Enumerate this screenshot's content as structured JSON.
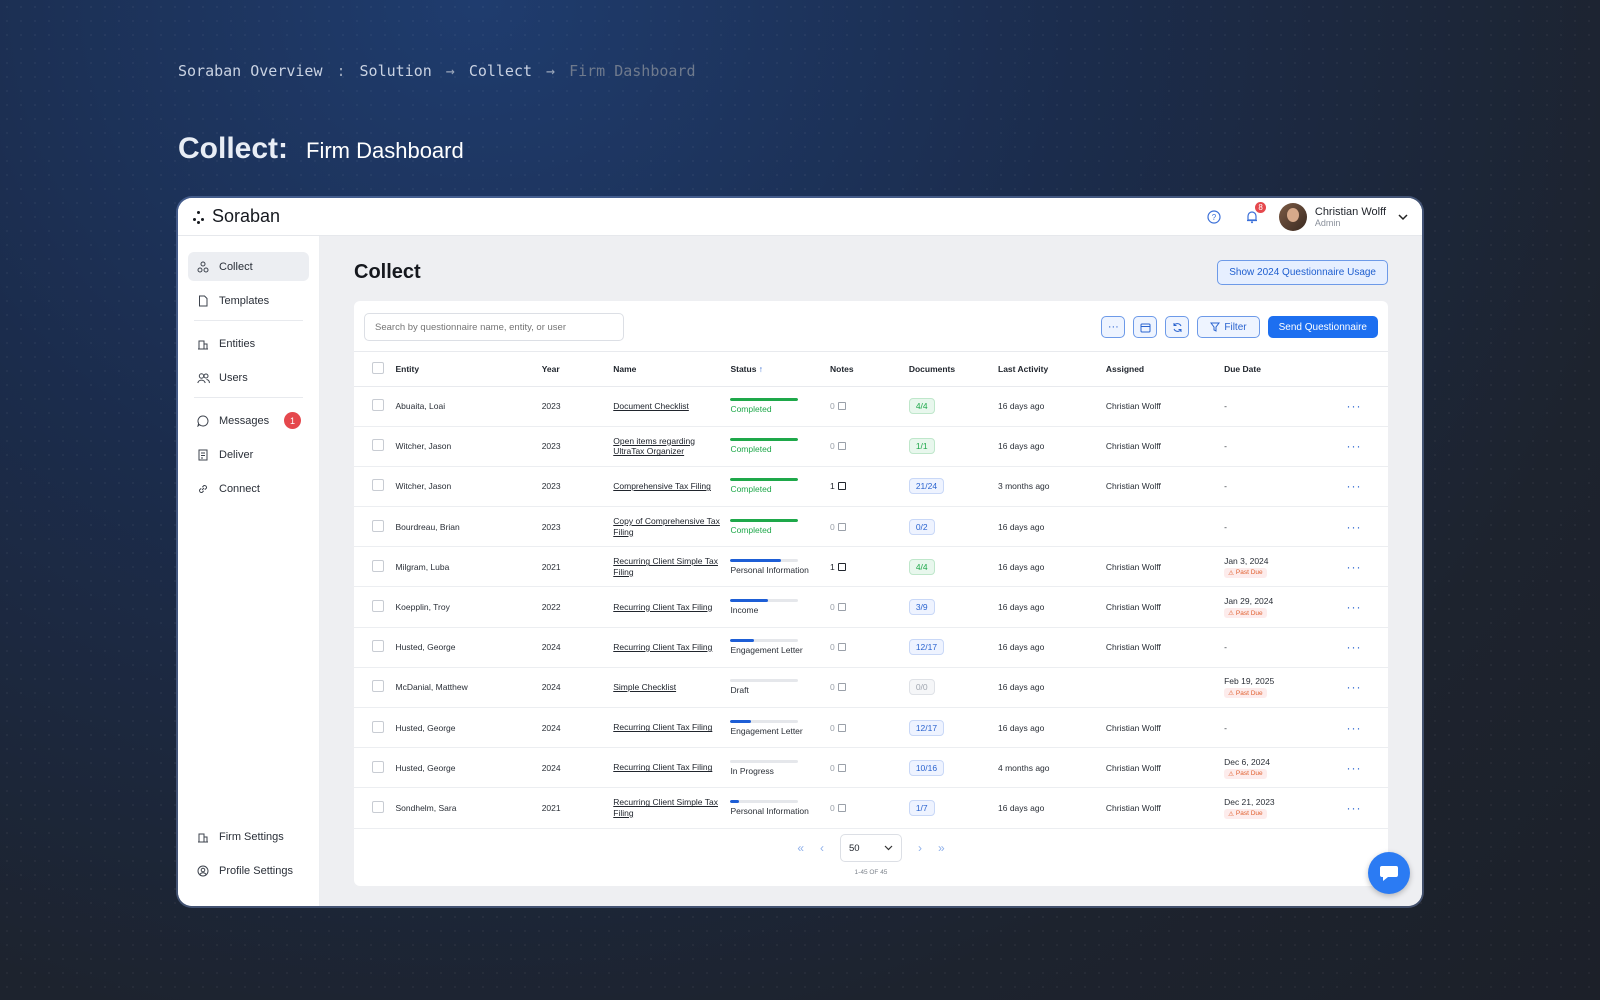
{
  "breadcrumb": {
    "items": [
      "Soraban Overview",
      "Solution",
      "Collect",
      "Firm Dashboard"
    ],
    "separators": [
      ":",
      "→",
      "→"
    ]
  },
  "heading": {
    "main": "Collect:",
    "sub": "Firm Dashboard"
  },
  "app": {
    "logo": "Soraban",
    "notifications_count": "8",
    "user": {
      "name": "Christian Wolff",
      "role": "Admin"
    }
  },
  "sidebar": {
    "items": [
      {
        "label": "Collect",
        "icon": "collect-icon",
        "active": true
      },
      {
        "label": "Templates",
        "icon": "document-icon"
      },
      {
        "label": "Entities",
        "icon": "building-icon"
      },
      {
        "label": "Users",
        "icon": "users-icon"
      },
      {
        "label": "Messages",
        "icon": "message-icon",
        "badge": "1"
      },
      {
        "label": "Deliver",
        "icon": "deliver-icon"
      },
      {
        "label": "Connect",
        "icon": "link-icon"
      }
    ],
    "bottom": [
      {
        "label": "Firm Settings",
        "icon": "building-icon"
      },
      {
        "label": "Profile Settings",
        "icon": "profile-settings-icon"
      }
    ]
  },
  "main": {
    "title": "Collect",
    "usage_button": "Show 2024 Questionnaire Usage",
    "search_placeholder": "Search by questionnaire name, entity, or user",
    "filter_label": "Filter",
    "send_label": "Send Questionnaire"
  },
  "table": {
    "headers": [
      "Entity",
      "Year",
      "Name",
      "Status",
      "Notes",
      "Documents",
      "Last Activity",
      "Assigned",
      "Due Date"
    ],
    "rows": [
      {
        "entity": "Abuaita, Loai",
        "year": "2023",
        "name": "Document Checklist",
        "status": "Completed",
        "progress": 1.0,
        "status_color": "#1ea84a",
        "notes": "0",
        "docs": "4/4",
        "docs_style": "green",
        "activity": "16 days ago",
        "assigned": "Christian Wolff",
        "due": "-",
        "past_due": false
      },
      {
        "entity": "Witcher, Jason",
        "year": "2023",
        "name": "Open items regarding UltraTax Organizer",
        "status": "Completed",
        "progress": 1.0,
        "status_color": "#1ea84a",
        "notes": "0",
        "docs": "1/1",
        "docs_style": "green",
        "activity": "16 days ago",
        "assigned": "Christian Wolff",
        "due": "-",
        "past_due": false
      },
      {
        "entity": "Witcher, Jason",
        "year": "2023",
        "name": "Comprehensive Tax Filing",
        "status": "Completed",
        "progress": 1.0,
        "status_color": "#1ea84a",
        "notes": "1",
        "docs": "21/24",
        "docs_style": "blue",
        "activity": "3 months ago",
        "assigned": "Christian Wolff",
        "due": "-",
        "past_due": false
      },
      {
        "entity": "Bourdreau, Brian",
        "year": "2023",
        "name": "Copy of Comprehensive Tax Filing",
        "status": "Completed",
        "progress": 1.0,
        "status_color": "#1ea84a",
        "notes": "0",
        "docs": "0/2",
        "docs_style": "blue",
        "activity": "16 days ago",
        "assigned": "",
        "due": "-",
        "past_due": false
      },
      {
        "entity": "Milgram, Luba",
        "year": "2021",
        "name": "Recurring Client Simple Tax Filing",
        "status": "Personal Information",
        "progress": 0.75,
        "status_color": "#1d5ed6",
        "notes": "1",
        "docs": "4/4",
        "docs_style": "green",
        "activity": "16 days ago",
        "assigned": "Christian Wolff",
        "due": "Jan 3, 2024",
        "past_due": true
      },
      {
        "entity": "Koepplin, Troy",
        "year": "2022",
        "name": "Recurring Client Tax Filing",
        "status": "Income",
        "progress": 0.55,
        "status_color": "#1d5ed6",
        "notes": "0",
        "docs": "3/9",
        "docs_style": "blue",
        "activity": "16 days ago",
        "assigned": "Christian Wolff",
        "due": "Jan 29, 2024",
        "past_due": true
      },
      {
        "entity": "Husted, George",
        "year": "2024",
        "name": "Recurring Client Tax Filing",
        "status": "Engagement Letter",
        "progress": 0.35,
        "status_color": "#1d5ed6",
        "notes": "0",
        "docs": "12/17",
        "docs_style": "blue",
        "activity": "16 days ago",
        "assigned": "Christian Wolff",
        "due": "-",
        "past_due": false
      },
      {
        "entity": "McDanial, Matthew",
        "year": "2024",
        "name": "Simple Checklist",
        "status": "Draft",
        "progress": 0.0,
        "status_color": "#1d5ed6",
        "notes": "0",
        "docs": "0/0",
        "docs_style": "grey",
        "activity": "16 days ago",
        "assigned": "",
        "due": "Feb 19, 2025",
        "past_due": true
      },
      {
        "entity": "Husted, George",
        "year": "2024",
        "name": "Recurring Client Tax Filing",
        "status": "Engagement Letter",
        "progress": 0.3,
        "status_color": "#1d5ed6",
        "notes": "0",
        "docs": "12/17",
        "docs_style": "blue",
        "activity": "16 days ago",
        "assigned": "Christian Wolff",
        "due": "-",
        "past_due": false
      },
      {
        "entity": "Husted, George",
        "year": "2024",
        "name": "Recurring Client Tax Filing",
        "status": "In Progress",
        "progress": 0.0,
        "status_color": "#1d5ed6",
        "notes": "0",
        "docs": "10/16",
        "docs_style": "blue",
        "activity": "4 months ago",
        "assigned": "Christian Wolff",
        "due": "Dec 6, 2024",
        "past_due": true
      },
      {
        "entity": "Sondhelm, Sara",
        "year": "2021",
        "name": "Recurring Client Simple Tax Filing",
        "status": "Personal Information",
        "progress": 0.12,
        "status_color": "#1d5ed6",
        "notes": "0",
        "docs": "1/7",
        "docs_style": "blue",
        "activity": "16 days ago",
        "assigned": "Christian Wolff",
        "due": "Dec 21, 2023",
        "past_due": true
      }
    ],
    "past_due_label": "Past Due"
  },
  "pager": {
    "per_page": "50",
    "count": "1-45 OF 45"
  }
}
